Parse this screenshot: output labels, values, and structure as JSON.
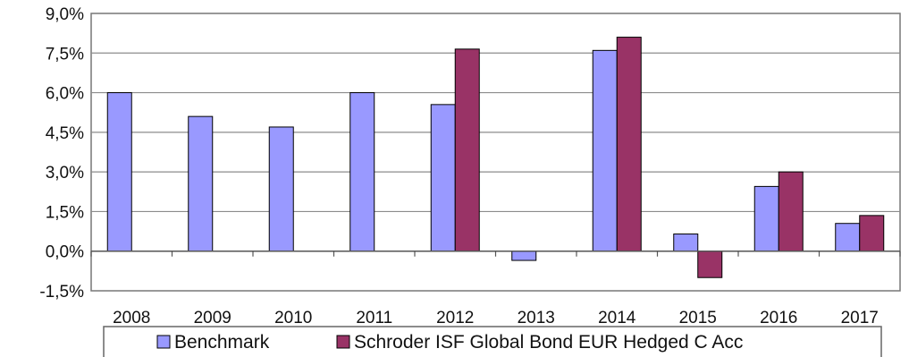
{
  "chart_data": {
    "type": "bar",
    "title": "",
    "xlabel": "",
    "ylabel": "",
    "categories": [
      "2008",
      "2009",
      "2010",
      "2011",
      "2012",
      "2013",
      "2014",
      "2015",
      "2016",
      "2017"
    ],
    "series": [
      {
        "name": "Benchmark",
        "color": "#9999ff",
        "values": [
          6.0,
          5.1,
          4.7,
          6.0,
          5.55,
          -0.35,
          7.6,
          0.65,
          2.45,
          1.05
        ]
      },
      {
        "name": "Schroder ISF Global Bond EUR Hedged C Acc",
        "color": "#993366",
        "values": [
          null,
          null,
          null,
          null,
          7.65,
          null,
          8.1,
          -1.0,
          3.0,
          1.35
        ]
      }
    ],
    "ylim": [
      -1.5,
      9.0
    ],
    "yticks": [
      "-1,5%",
      "0,0%",
      "1,5%",
      "3,0%",
      "4,5%",
      "6,0%",
      "7,5%",
      "9,0%"
    ],
    "grid": true,
    "legend_position": "bottom"
  }
}
